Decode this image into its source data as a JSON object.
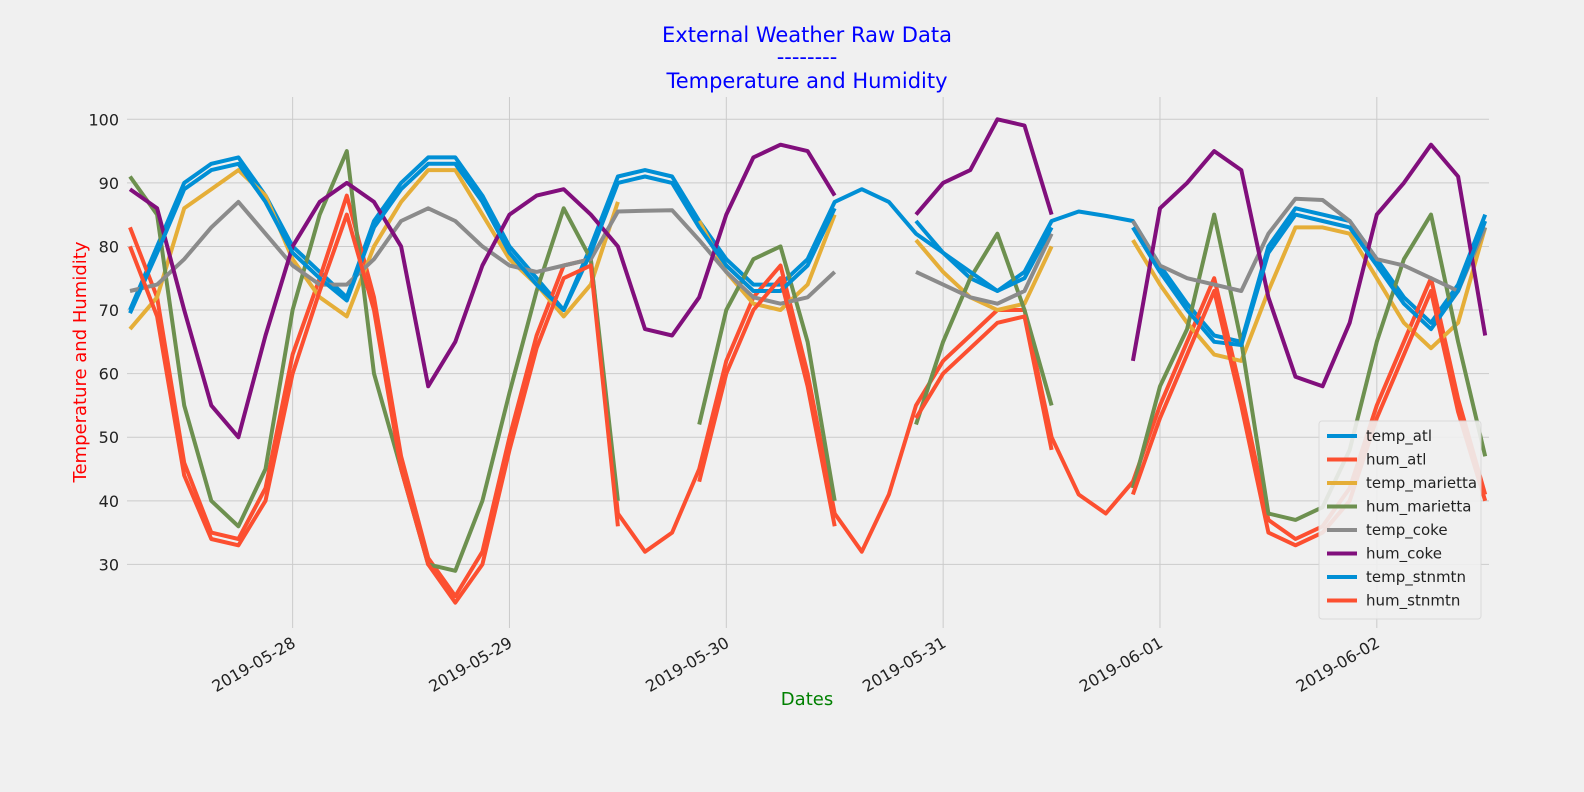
{
  "chart_data": {
    "type": "line",
    "title": "External Weather Raw Data",
    "subtitle_rule": "--------",
    "subtitle": "Temperature and Humidity",
    "x_label": "Dates",
    "y_label": "Temperature and Humidity",
    "x": [
      "2019-05-27 06:00",
      "2019-05-27 09:00",
      "2019-05-27 12:00",
      "2019-05-27 15:00",
      "2019-05-27 18:00",
      "2019-05-27 21:00",
      "2019-05-28 00:00",
      "2019-05-28 03:00",
      "2019-05-28 06:00",
      "2019-05-28 09:00",
      "2019-05-28 12:00",
      "2019-05-28 15:00",
      "2019-05-28 18:00",
      "2019-05-28 21:00",
      "2019-05-29 00:00",
      "2019-05-29 03:00",
      "2019-05-29 06:00",
      "2019-05-29 09:00",
      "2019-05-29 12:00",
      "2019-05-29 15:00",
      "2019-05-29 18:00",
      "2019-05-29 21:00",
      "2019-05-30 00:00",
      "2019-05-30 03:00",
      "2019-05-30 06:00",
      "2019-05-30 09:00",
      "2019-05-30 12:00",
      "2019-05-30 15:00",
      "2019-05-30 18:00",
      "2019-05-30 21:00",
      "2019-05-31 00:00",
      "2019-05-31 03:00",
      "2019-05-31 06:00",
      "2019-05-31 09:00",
      "2019-05-31 12:00",
      "2019-05-31 15:00",
      "2019-05-31 18:00",
      "2019-05-31 21:00",
      "2019-06-01 00:00",
      "2019-06-01 03:00",
      "2019-06-01 06:00",
      "2019-06-01 09:00",
      "2019-06-01 12:00",
      "2019-06-01 15:00",
      "2019-06-01 18:00",
      "2019-06-01 21:00",
      "2019-06-02 00:00",
      "2019-06-02 03:00",
      "2019-06-02 06:00",
      "2019-06-02 09:00",
      "2019-06-02 12:00"
    ],
    "series": [
      {
        "name": "temp_atl",
        "color": "#008fd5",
        "values": [
          70,
          80,
          90,
          93,
          94,
          88,
          80,
          76,
          72,
          84,
          90,
          94,
          94,
          88,
          80,
          75,
          70,
          80,
          91,
          92,
          91,
          84,
          78,
          74,
          74,
          78,
          87,
          89,
          87,
          82,
          79,
          75,
          73,
          76,
          84,
          85.5,
          84.8,
          84,
          77,
          71,
          66,
          65,
          80,
          86,
          85,
          84,
          78,
          72,
          68,
          74,
          85
        ]
      },
      {
        "name": "hum_atl",
        "color": "#fc4f30",
        "values": [
          83,
          72,
          46,
          35,
          34,
          42,
          63,
          75,
          88,
          72,
          47,
          31,
          25,
          32,
          50,
          66,
          77,
          78,
          38,
          32,
          35,
          45,
          62,
          72,
          77,
          60,
          38,
          32,
          41,
          55,
          62,
          66,
          70,
          70,
          50,
          41,
          38,
          43,
          55,
          65,
          75,
          57,
          37,
          34,
          36,
          42,
          55,
          65,
          75,
          56,
          41
        ]
      },
      {
        "name": "temp_marietta",
        "color": "#e5ae38",
        "values": [
          67,
          72,
          86,
          89,
          92,
          88,
          78,
          72,
          69,
          80,
          87,
          92,
          92,
          85,
          78,
          74,
          69,
          74,
          87,
          null,
          null,
          84,
          76,
          71,
          70,
          74,
          85,
          null,
          null,
          81,
          76,
          72,
          70,
          71,
          80,
          null,
          null,
          81,
          74,
          68,
          63,
          62,
          73,
          83,
          83,
          82,
          75,
          68,
          64,
          68,
          83
        ]
      },
      {
        "name": "hum_marietta",
        "color": "#6d904f",
        "values": [
          91,
          85,
          55,
          40,
          36,
          45,
          70,
          85,
          95,
          60,
          45,
          30,
          29,
          40,
          57,
          73,
          86,
          78,
          40,
          null,
          null,
          52,
          70,
          78,
          80,
          65,
          40,
          null,
          null,
          52,
          65,
          75,
          82,
          70,
          55,
          null,
          null,
          42,
          58,
          67,
          85,
          65,
          38,
          37,
          39,
          48,
          65,
          78,
          85,
          65,
          47
        ]
      },
      {
        "name": "temp_coke",
        "color": "#8b8b8b",
        "values": [
          73,
          74,
          78,
          83,
          87,
          82,
          77,
          74,
          74,
          78,
          84,
          86,
          84,
          80,
          77,
          76,
          77,
          78,
          85.5,
          85.6,
          85.7,
          81,
          76,
          72,
          71,
          72,
          76,
          null,
          null,
          76,
          74,
          72,
          71,
          73,
          82,
          null,
          null,
          84,
          77,
          75,
          74,
          73,
          82,
          87.5,
          87.3,
          84,
          78,
          77,
          75,
          73,
          83
        ]
      },
      {
        "name": "hum_coke",
        "color": "#810f7c",
        "values": [
          89,
          86,
          70,
          55,
          50,
          66,
          80,
          87,
          90,
          87,
          80,
          58,
          65,
          77,
          85,
          88,
          89,
          85,
          80,
          67,
          66,
          72,
          85,
          94,
          96,
          95,
          88,
          null,
          null,
          85,
          90,
          92,
          100,
          99,
          85,
          null,
          null,
          62,
          86,
          90,
          95,
          92,
          72,
          59.5,
          58,
          68,
          85,
          90,
          96,
          91,
          66
        ]
      },
      {
        "name": "temp_stnmtn",
        "color": "#008fd5",
        "values": [
          69.5,
          79,
          89,
          92,
          93,
          87,
          79,
          75,
          71.5,
          83,
          89,
          93,
          93,
          87,
          79,
          74,
          70,
          79,
          90,
          91,
          90,
          83,
          77,
          73,
          73,
          77,
          86,
          null,
          null,
          84,
          79,
          76,
          73,
          75,
          83,
          null,
          null,
          83,
          76,
          70,
          65,
          64.5,
          79,
          85,
          84,
          83,
          77,
          71,
          67,
          73,
          84
        ]
      },
      {
        "name": "hum_stnmtn",
        "color": "#fc4f30",
        "values": [
          80,
          69,
          44,
          34,
          33,
          40,
          60,
          73,
          85,
          70,
          45,
          30,
          24,
          30,
          48,
          64,
          75,
          77,
          36,
          null,
          null,
          43,
          60,
          70,
          75,
          58,
          36,
          null,
          null,
          53,
          60,
          64,
          68,
          69,
          48,
          null,
          null,
          41,
          53,
          63,
          73,
          55,
          35,
          33,
          35,
          40,
          53,
          63,
          73,
          54,
          40
        ]
      }
    ],
    "xlim": [
      "2019-05-27 05:40",
      "2019-06-02 12:25"
    ],
    "xticks": [
      "2019-05-28",
      "2019-05-29",
      "2019-05-30",
      "2019-05-31",
      "2019-06-01",
      "2019-06-02"
    ],
    "ylim": [
      20,
      103.5
    ],
    "yticks": [
      30,
      40,
      50,
      60,
      70,
      80,
      90,
      100
    ],
    "grid": true,
    "legend": "lower right"
  }
}
